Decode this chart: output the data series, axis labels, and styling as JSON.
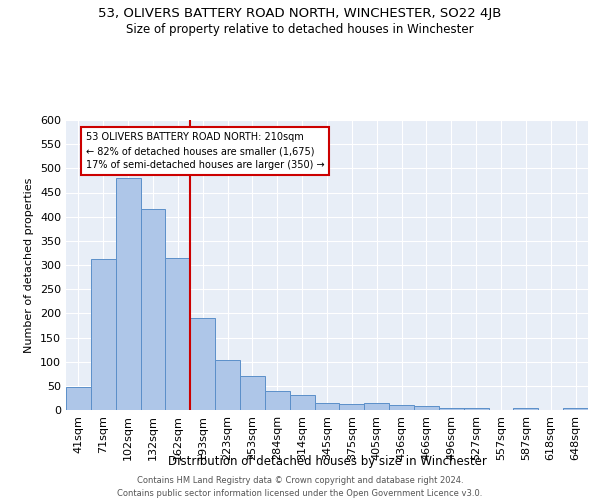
{
  "title": "53, OLIVERS BATTERY ROAD NORTH, WINCHESTER, SO22 4JB",
  "subtitle": "Size of property relative to detached houses in Winchester",
  "xlabel": "Distribution of detached houses by size in Winchester",
  "ylabel": "Number of detached properties",
  "bar_labels": [
    "41sqm",
    "71sqm",
    "102sqm",
    "132sqm",
    "162sqm",
    "193sqm",
    "223sqm",
    "253sqm",
    "284sqm",
    "314sqm",
    "345sqm",
    "375sqm",
    "405sqm",
    "436sqm",
    "466sqm",
    "496sqm",
    "527sqm",
    "557sqm",
    "587sqm",
    "618sqm",
    "648sqm"
  ],
  "bar_values": [
    47,
    312,
    480,
    415,
    315,
    190,
    103,
    70,
    39,
    32,
    15,
    13,
    15,
    10,
    8,
    5,
    5,
    0,
    5,
    0,
    5
  ],
  "bar_color": "#aec6e8",
  "bar_edge_color": "#5b8fc9",
  "background_color": "#e8eef7",
  "grid_color": "#ffffff",
  "red_line_x": 4.5,
  "annotation_label": "53 OLIVERS BATTERY ROAD NORTH: 210sqm",
  "annotation_line2": "← 82% of detached houses are smaller (1,675)",
  "annotation_line3": "17% of semi-detached houses are larger (350) →",
  "red_color": "#cc0000",
  "ylim": [
    0,
    600
  ],
  "yticks": [
    0,
    50,
    100,
    150,
    200,
    250,
    300,
    350,
    400,
    450,
    500,
    550,
    600
  ],
  "footer_line1": "Contains HM Land Registry data © Crown copyright and database right 2024.",
  "footer_line2": "Contains public sector information licensed under the Open Government Licence v3.0."
}
